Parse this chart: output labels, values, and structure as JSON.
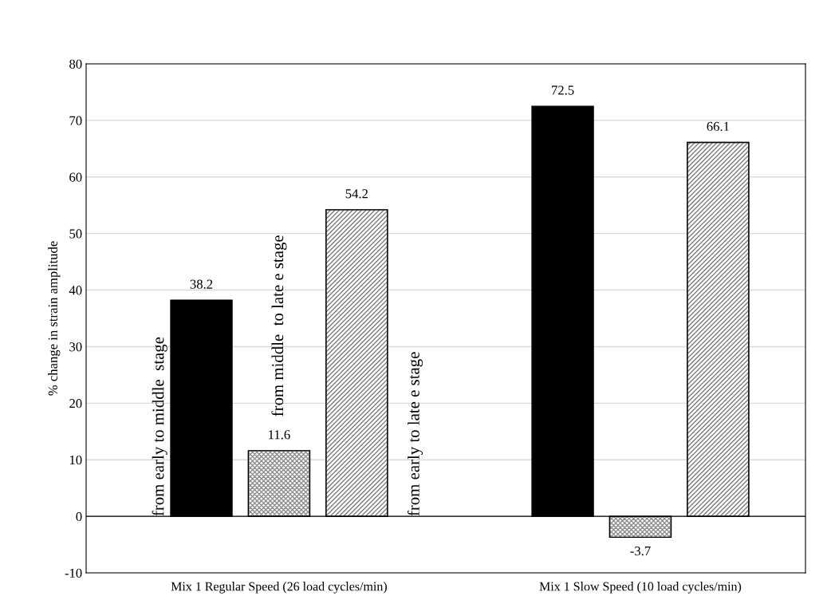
{
  "chart_data": {
    "type": "bar",
    "ylabel": "% change in strain amplitude",
    "categories": [
      "Mix 1 Regular Speed (26 load cycles/min)",
      "Mix 1 Slow Speed (10 load cycles/min)"
    ],
    "series": [
      {
        "name": "from early to middle  stage",
        "color": "#000000",
        "values": [
          38.2,
          72.5
        ]
      },
      {
        "name": "from middle  to late e stage",
        "color": "#8c8c8c",
        "values": [
          11.6,
          -3.7
        ]
      },
      {
        "name": "from early to late e stage",
        "color": "#7a7a7a",
        "values": [
          54.2,
          66.1
        ]
      }
    ],
    "ylim": [
      -10,
      80
    ],
    "yticks": [
      -10,
      0,
      10,
      20,
      30,
      40,
      50,
      60,
      70,
      80
    ],
    "grid": "y",
    "data_labels": true
  }
}
